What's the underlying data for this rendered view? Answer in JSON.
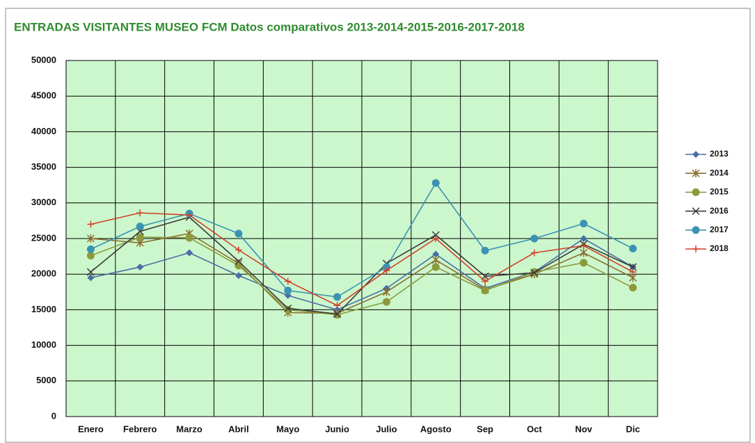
{
  "chart_data": {
    "type": "line",
    "title": "ENTRADAS VISITANTES MUSEO FCM Datos comparativos 2013-2014-2015-2016-2017-2018",
    "categories": [
      "Enero",
      "Febrero",
      "Marzo",
      "Abril",
      "Mayo",
      "Junio",
      "Julio",
      "Agosto",
      "Sep",
      "Oct",
      "Nov",
      "Dic"
    ],
    "ylim": [
      0,
      50000
    ],
    "yticks": [
      0,
      5000,
      10000,
      15000,
      20000,
      25000,
      30000,
      35000,
      40000,
      45000,
      50000
    ],
    "grid": true,
    "legend": "right",
    "series": [
      {
        "name": "2013",
        "color": "#4a6fa5",
        "marker": "diamond",
        "values": [
          19500,
          21000,
          23000,
          19800,
          17000,
          15000,
          18000,
          22800,
          18000,
          20300,
          25000,
          21000
        ]
      },
      {
        "name": "2014",
        "color": "#8a6d2f",
        "marker": "star",
        "values": [
          25000,
          24400,
          25700,
          21500,
          14600,
          14500,
          17500,
          22000,
          17800,
          20000,
          23000,
          19500
        ]
      },
      {
        "name": "2015",
        "color": "#8c9a3c",
        "marker": "circle",
        "values": [
          22600,
          25200,
          25100,
          21200,
          15000,
          14300,
          16100,
          21000,
          17700,
          20300,
          21600,
          18100
        ]
      },
      {
        "name": "2016",
        "color": "#3a3a3a",
        "marker": "x",
        "values": [
          20300,
          26000,
          28000,
          21800,
          15200,
          14400,
          21500,
          25500,
          19700,
          20200,
          24200,
          21000
        ]
      },
      {
        "name": "2017",
        "color": "#3b93b3",
        "marker": "circle",
        "values": [
          23500,
          26700,
          28500,
          25700,
          17700,
          16800,
          21000,
          32800,
          23300,
          25000,
          27100,
          23600
        ]
      },
      {
        "name": "2018",
        "color": "#d0402a",
        "marker": "plus",
        "values": [
          27000,
          28600,
          28300,
          23400,
          19000,
          15600,
          20500,
          25000,
          19000,
          23000,
          24000,
          20300
        ]
      }
    ]
  }
}
